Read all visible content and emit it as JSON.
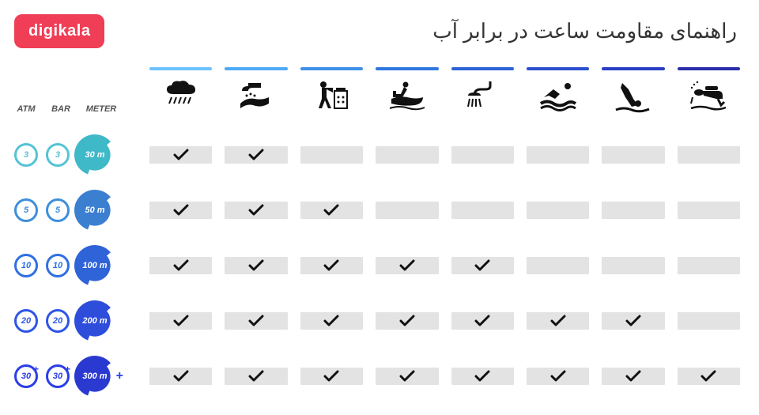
{
  "brand": {
    "logo_text": "digikala",
    "logo_bg": "#ef3e55",
    "logo_fg": "#ffffff"
  },
  "title": "راهنمای مقاومت ساعت در برابر آب",
  "left_headers": {
    "atm": "ATM",
    "bar": "BAR",
    "meter": "METER"
  },
  "columns": [
    {
      "key": "rain",
      "bar_color": "#6ec2ff",
      "icon": "rain"
    },
    {
      "key": "wash",
      "bar_color": "#4fa9f5",
      "icon": "wash"
    },
    {
      "key": "work",
      "bar_color": "#3f8fe8",
      "icon": "work"
    },
    {
      "key": "jetski",
      "bar_color": "#2f78df",
      "icon": "jetski"
    },
    {
      "key": "shower",
      "bar_color": "#2c63d6",
      "icon": "shower"
    },
    {
      "key": "swim",
      "bar_color": "#2b4fcd",
      "icon": "swim"
    },
    {
      "key": "dive",
      "bar_color": "#2a3ec4",
      "icon": "dive"
    },
    {
      "key": "scuba",
      "bar_color": "#2a2eaa",
      "icon": "scuba"
    }
  ],
  "rows": [
    {
      "atm": "3",
      "bar": "3",
      "meter": "30 m",
      "circle_color": "#55c3d6",
      "meter_color": "#3fb8c8",
      "plus": false,
      "marks": [
        true,
        true,
        false,
        false,
        false,
        false,
        false,
        false
      ]
    },
    {
      "atm": "5",
      "bar": "5",
      "meter": "50 m",
      "circle_color": "#3e8fdc",
      "meter_color": "#3b7fd0",
      "plus": false,
      "marks": [
        true,
        true,
        true,
        false,
        false,
        false,
        false,
        false
      ]
    },
    {
      "atm": "10",
      "bar": "10",
      "meter": "100 m",
      "circle_color": "#2f6fe4",
      "meter_color": "#2f63d8",
      "plus": false,
      "marks": [
        true,
        true,
        true,
        true,
        true,
        false,
        false,
        false
      ]
    },
    {
      "atm": "20",
      "bar": "20",
      "meter": "200 m",
      "circle_color": "#2f55e6",
      "meter_color": "#2e4ddb",
      "plus": false,
      "marks": [
        true,
        true,
        true,
        true,
        true,
        true,
        true,
        false
      ]
    },
    {
      "atm": "30",
      "bar": "30",
      "meter": "300 m",
      "circle_color": "#2a3ee8",
      "meter_color": "#2a3ad0",
      "plus": true,
      "marks": [
        true,
        true,
        true,
        true,
        true,
        true,
        true,
        true
      ]
    }
  ],
  "colors": {
    "cell_bg": "#e3e3e3",
    "check": "#111111",
    "bg": "#ffffff",
    "header_text": "#555555"
  }
}
